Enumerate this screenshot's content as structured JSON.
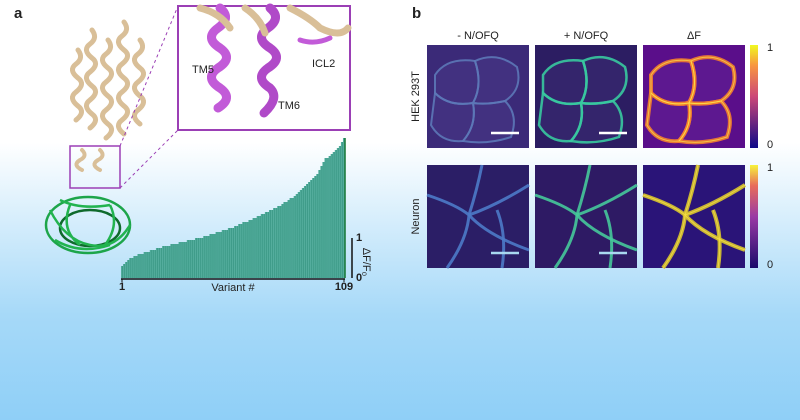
{
  "panel_a": {
    "label": "a",
    "inset_labels": [
      "TM5",
      "TM6",
      "ICL2"
    ],
    "chart": {
      "type": "bar",
      "xlabel": "Variant #",
      "ylabel": "ΔF/F₀",
      "xticks": [
        1,
        109
      ],
      "xlim": [
        1,
        109
      ],
      "yticks": [
        0,
        1
      ],
      "ylim": [
        0,
        3.5
      ],
      "color": "#4aa596",
      "values": [
        0.3,
        0.35,
        0.4,
        0.45,
        0.5,
        0.5,
        0.55,
        0.55,
        0.6,
        0.6,
        0.6,
        0.65,
        0.65,
        0.65,
        0.7,
        0.7,
        0.7,
        0.75,
        0.75,
        0.75,
        0.8,
        0.8,
        0.8,
        0.8,
        0.85,
        0.85,
        0.85,
        0.85,
        0.9,
        0.9,
        0.9,
        0.9,
        0.95,
        0.95,
        0.95,
        0.95,
        1.0,
        1.0,
        1.0,
        1.0,
        1.05,
        1.05,
        1.05,
        1.1,
        1.1,
        1.1,
        1.15,
        1.15,
        1.15,
        1.2,
        1.2,
        1.2,
        1.25,
        1.25,
        1.25,
        1.3,
        1.3,
        1.35,
        1.35,
        1.4,
        1.4,
        1.4,
        1.45,
        1.45,
        1.5,
        1.5,
        1.55,
        1.55,
        1.6,
        1.6,
        1.65,
        1.65,
        1.7,
        1.7,
        1.75,
        1.75,
        1.8,
        1.8,
        1.85,
        1.9,
        1.9,
        1.95,
        2.0,
        2.0,
        2.05,
        2.1,
        2.15,
        2.2,
        2.25,
        2.3,
        2.35,
        2.4,
        2.45,
        2.5,
        2.55,
        2.6,
        2.7,
        2.8,
        2.9,
        3.0,
        3.0,
        3.05,
        3.1,
        3.15,
        3.2,
        3.25,
        3.3,
        3.4,
        3.5
      ]
    }
  },
  "panel_b": {
    "label": "b",
    "columns": [
      "- N/OFQ",
      "+ N/OFQ",
      "ΔF"
    ],
    "rows": [
      {
        "name": "HEK 293T",
        "colorbar_ticks": [
          0,
          1
        ]
      },
      {
        "name": "Neuron",
        "colorbar_ticks": [
          0,
          1
        ]
      }
    ]
  }
}
